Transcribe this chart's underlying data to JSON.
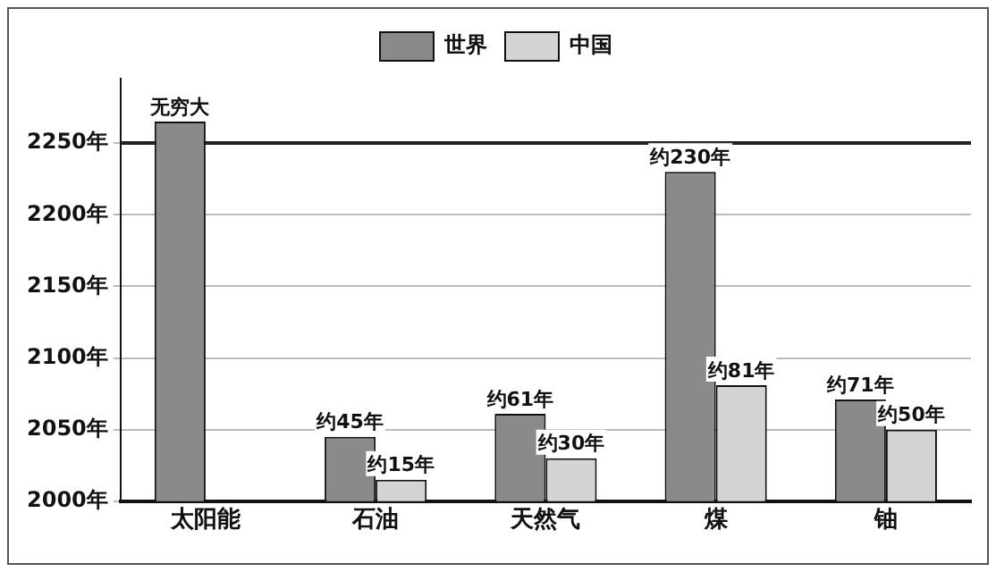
{
  "chart_data": {
    "type": "bar",
    "categories": [
      "太阳能",
      "石油",
      "天然气",
      "煤",
      "铀"
    ],
    "series": [
      {
        "name": "世界",
        "color": "#8a8a8a",
        "values": [
          2265,
          2045,
          2061,
          2230,
          2071
        ],
        "value_labels": [
          "无穷大",
          "约45年",
          "约61年",
          "约230年",
          "约71年"
        ]
      },
      {
        "name": "中国",
        "color": "#d4d4d4",
        "values": [
          null,
          2015,
          2030,
          2081,
          2050
        ],
        "value_labels": [
          null,
          "约15年",
          "约30年",
          "约81年",
          "约50年"
        ]
      }
    ],
    "ylim": [
      2000,
      2295
    ],
    "yticks": [
      {
        "value": 2000,
        "label": "2000年"
      },
      {
        "value": 2050,
        "label": "2050年"
      },
      {
        "value": 2100,
        "label": "2100年"
      },
      {
        "value": 2150,
        "label": "2150年"
      },
      {
        "value": 2200,
        "label": "2200年"
      },
      {
        "value": 2250,
        "label": "2250年"
      }
    ],
    "ref_lines": [
      {
        "axis": "y",
        "value": 2250,
        "color": "#222222"
      }
    ],
    "grid": "y",
    "legend": "top"
  }
}
